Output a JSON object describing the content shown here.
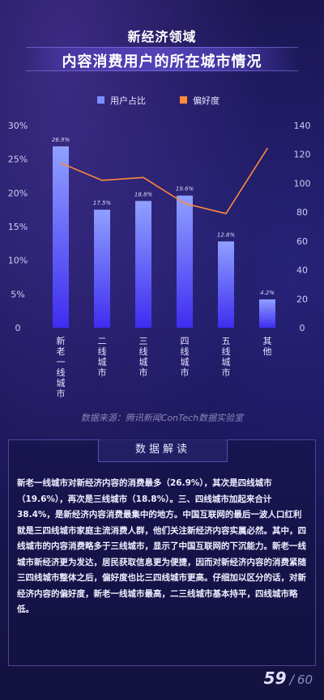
{
  "title": {
    "line1": "新经济领域",
    "line2": "内容消费用户的所在城市情况"
  },
  "chart_data": {
    "type": "bar",
    "categories": [
      "新老一线城市",
      "二线城市",
      "三线城市",
      "四线城市",
      "五线城市",
      "其他"
    ],
    "series": [
      {
        "name": "用户占比",
        "type": "bar",
        "axis": "left",
        "unit": "%",
        "values": [
          26.9,
          17.5,
          18.8,
          19.6,
          12.8,
          4.2
        ],
        "labels": [
          "26.9%",
          "17.5%",
          "18.8%",
          "19.6%",
          "12.8%",
          "4.2%"
        ]
      },
      {
        "name": "偏好度",
        "type": "line",
        "axis": "right",
        "values": [
          114,
          102,
          104,
          86,
          79,
          124
        ]
      }
    ],
    "y_left": {
      "min": 0,
      "max": 30,
      "ticks": [
        "0",
        "5%",
        "10%",
        "15%",
        "20%",
        "25%",
        "30%"
      ]
    },
    "y_right": {
      "min": 0,
      "max": 140,
      "ticks": [
        "0",
        "20",
        "40",
        "60",
        "80",
        "100",
        "120",
        "140"
      ]
    },
    "legend_position": "top",
    "colors": {
      "bar_top": "#8fa0ff",
      "bar_bottom": "#3f2df0",
      "line": "#ff8a3d",
      "legend_bar": "#7d8cff"
    }
  },
  "source": "数据来源：腾讯新闻ConTech数据实验室",
  "panel": {
    "title": "数据解读",
    "text": "新老一线城市对新经济内容的消费最多（26.9%），其次是四线城市（19.6%），再次是三线城市（18.8%）。三、四线城市加起来合计38.4%，是新经济内容消费最集中的地方。中国互联网的最后一波人口红利就是三四线城市家庭主流消费人群，他们关注新经济内容实属必然。其中，四线城市的内容消费略多于三线城市，显示了中国互联网的下沉能力。新老一线城市新经济更为发达，居民获取信息更为便捷，因而对新经济内容的消费紧随三四线城市整体之后，偏好度也比三四线城市更高。仔细加以区分的话，对新经济内容的偏好度，新老一线城市最高，二三线城市基本持平，四线城市略低。"
  },
  "page": {
    "current": "59",
    "sep": "/",
    "total": "60"
  }
}
